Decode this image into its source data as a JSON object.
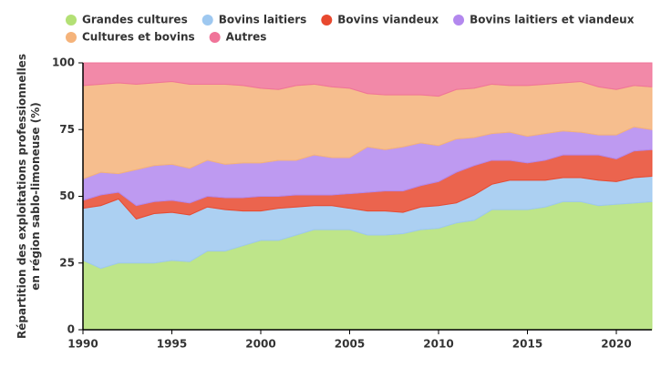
{
  "chart_data": {
    "type": "stacked-area",
    "legend_position": "top",
    "ylabel": [
      "Répartition des exploitations professionnelles",
      "en région sablo-limoneuse (%)"
    ],
    "x": [
      1990,
      1991,
      1992,
      1993,
      1994,
      1995,
      1996,
      1997,
      1998,
      1999,
      2000,
      2001,
      2002,
      2003,
      2004,
      2005,
      2006,
      2007,
      2008,
      2009,
      2010,
      2011,
      2012,
      2013,
      2014,
      2015,
      2016,
      2017,
      2018,
      2019,
      2020,
      2021,
      2022
    ],
    "xlim": [
      1990,
      2022
    ],
    "xticks": [
      1990,
      1995,
      2000,
      2005,
      2010,
      2015,
      2020
    ],
    "ylim": [
      0,
      100
    ],
    "yticks": [
      0,
      25,
      50,
      75,
      100
    ],
    "series": [
      {
        "name": "Grandes cultures",
        "color": "#b3e075",
        "values": [
          26,
          23,
          25,
          25,
          25,
          26,
          25.5,
          29.5,
          29.5,
          31.5,
          33.5,
          33.5,
          35.5,
          37.5,
          37.5,
          37.5,
          35.5,
          35.5,
          36,
          37.5,
          38,
          40,
          41,
          45,
          45,
          45,
          46,
          48,
          48,
          46.5,
          47,
          47.5,
          48
        ]
      },
      {
        "name": "Bovins laitiers",
        "color": "#9ec8f0",
        "values": [
          19.5,
          23.5,
          24,
          16.5,
          18.5,
          18,
          17.5,
          16.5,
          15.5,
          13,
          11,
          12,
          10.5,
          9,
          9,
          8,
          9,
          9,
          8,
          8.5,
          8.5,
          7.5,
          9.5,
          9.5,
          11,
          11,
          10,
          9,
          9,
          9.5,
          8.5,
          9.5,
          9.5
        ]
      },
      {
        "name": "Bovins viandeux",
        "color": "#e8492f",
        "values": [
          3,
          4,
          2.5,
          5,
          4.5,
          4.5,
          4.5,
          4,
          4.5,
          5,
          5.5,
          4.5,
          4.5,
          4,
          4,
          5.5,
          7,
          7.5,
          8,
          8,
          9,
          11.5,
          11,
          9,
          7.5,
          6.5,
          7.5,
          8.5,
          8.5,
          9.5,
          8.5,
          10,
          10
        ]
      },
      {
        "name": "Bovins laitiers et viandeux",
        "color": "#b388ee",
        "values": [
          8,
          8.5,
          7,
          13.5,
          13.5,
          13.5,
          13,
          13.5,
          12.5,
          13,
          12.5,
          13.5,
          13,
          15,
          14,
          13.5,
          17,
          15.5,
          16.5,
          16,
          13.5,
          12.5,
          10.5,
          10,
          10.5,
          10,
          10,
          9,
          8.5,
          7.5,
          9,
          9,
          7.5
        ]
      },
      {
        "name": "Cultures et bovins",
        "color": "#f5b37a",
        "values": [
          35,
          33,
          34,
          32,
          31,
          31,
          31.5,
          28.5,
          30,
          29,
          28,
          26.5,
          28,
          26.5,
          26.5,
          26,
          20,
          20.5,
          19.5,
          18,
          18.5,
          18.5,
          18.5,
          18.5,
          17.5,
          19,
          18.5,
          18,
          19,
          18,
          17,
          15.5,
          16
        ]
      },
      {
        "name": "Autres",
        "color": "#f07499",
        "values": [
          8.5,
          8,
          7.5,
          8,
          7.5,
          7,
          8,
          8,
          8,
          8.5,
          9.5,
          10,
          8.5,
          8,
          9,
          9.5,
          11.5,
          12,
          12,
          12,
          12.5,
          10,
          9.5,
          8,
          8.5,
          8.5,
          8,
          7.5,
          7,
          9,
          10,
          8.5,
          9
        ]
      }
    ]
  }
}
